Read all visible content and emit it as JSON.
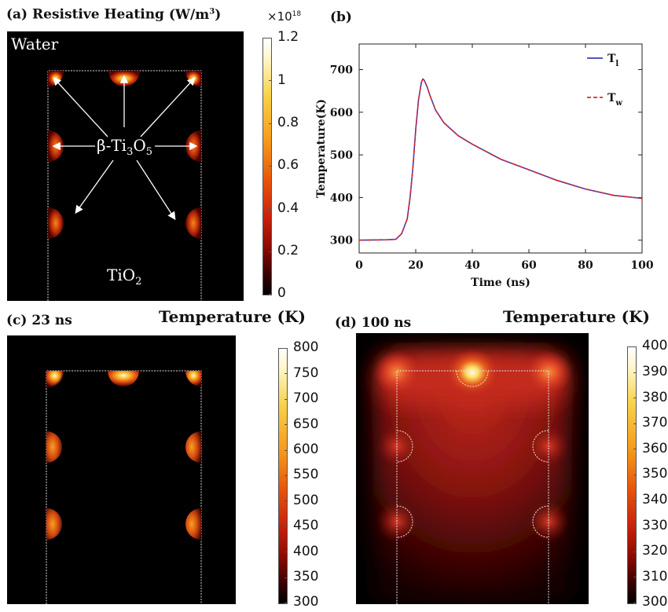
{
  "panel_a": {
    "title_prefix": "(a) Resistive Heating",
    "units_main": "(W/m",
    "units_sup": "3",
    "units_end": ")",
    "scale_base": "×10",
    "scale_exp": "18",
    "label_water": "Water",
    "label_tio2_main": "TiO",
    "label_tio2_sub": "2",
    "label_beta_a": "β-Ti",
    "label_beta_sub1": "3",
    "label_beta_b": "O",
    "label_beta_sub2": "5",
    "colorbar_ticks": [
      "1.2",
      "1",
      "0.8",
      "0.6",
      "0.4",
      "0.2",
      "0"
    ]
  },
  "panel_b": {
    "label": "(b)",
    "chart_data": {
      "type": "line",
      "xlabel": "Time (ns)",
      "ylabel": "Temperature(K)",
      "xlim": [
        0,
        100
      ],
      "ylim": [
        270,
        760
      ],
      "xticks": [
        "0",
        "20",
        "40",
        "60",
        "80",
        "100"
      ],
      "yticks": [
        "300",
        "400",
        "500",
        "600",
        "700"
      ],
      "series": [
        {
          "name": "T_l",
          "color": "#3a3fb5",
          "style": "solid",
          "x": [
            0,
            10,
            13,
            15,
            17,
            18,
            19,
            20,
            21,
            22,
            22.5,
            23,
            24,
            25,
            27,
            30,
            35,
            40,
            50,
            60,
            70,
            80,
            90,
            100
          ],
          "y": [
            300,
            301,
            302,
            315,
            350,
            400,
            470,
            560,
            630,
            670,
            678,
            675,
            660,
            640,
            605,
            575,
            545,
            525,
            490,
            465,
            440,
            420,
            405,
            398
          ]
        },
        {
          "name": "T_w",
          "color": "#e0242a",
          "style": "dashed",
          "x": [
            0,
            10,
            13,
            15,
            17,
            18,
            19,
            20,
            21,
            22,
            22.5,
            23,
            24,
            25,
            27,
            30,
            35,
            40,
            50,
            60,
            70,
            80,
            90,
            100
          ],
          "y": [
            300,
            301,
            302,
            315,
            350,
            400,
            470,
            560,
            630,
            670,
            678,
            675,
            660,
            640,
            605,
            575,
            545,
            525,
            490,
            465,
            440,
            420,
            405,
            398
          ]
        }
      ],
      "legend": [
        {
          "main": "T",
          "sub": "l"
        },
        {
          "main": "T",
          "sub": "w"
        }
      ]
    }
  },
  "panel_c": {
    "label": "(c) 23 ns",
    "colorbar_title": "Temperature (K)",
    "colorbar_ticks": [
      "800",
      "750",
      "700",
      "650",
      "600",
      "550",
      "500",
      "450",
      "400",
      "350",
      "300"
    ]
  },
  "panel_d": {
    "label": "(d)  100 ns",
    "colorbar_title": "Temperature (K)",
    "colorbar_ticks": [
      "400",
      "390",
      "380",
      "370",
      "360",
      "350",
      "340",
      "330",
      "320",
      "310",
      "300"
    ]
  },
  "colors": {
    "map_background": "#000000",
    "outline": "#dcdcdc",
    "arrow": "#ffffff",
    "hot_colormap": [
      "#000000",
      "#3a0000",
      "#8a0a00",
      "#c8200c",
      "#e8560a",
      "#f59a1a",
      "#f8d24a",
      "#fff6c8",
      "#ffffff"
    ]
  }
}
